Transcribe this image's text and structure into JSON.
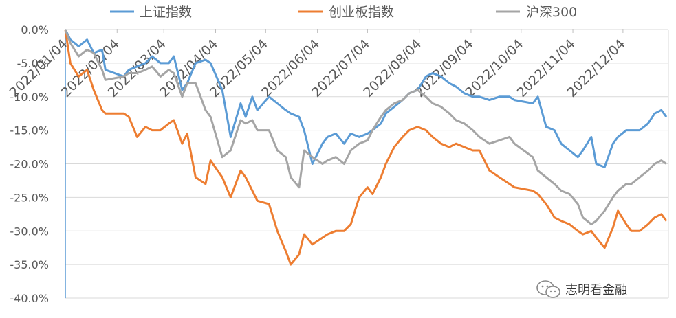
{
  "chart_data": {
    "type": "line",
    "title": "",
    "xlabel": "",
    "ylabel": "",
    "ylim": [
      -40,
      0
    ],
    "ytick_labels": [
      "0.0%",
      "-5.0%",
      "-10.0%",
      "-15.0%",
      "-20.0%",
      "-25.0%",
      "-30.0%",
      "-35.0%",
      "-40.0%"
    ],
    "xtick_labels": [
      "2022/01/04",
      "2022/02/04",
      "2022/03/04",
      "2022/04/04",
      "2022/05/04",
      "2022/06/04",
      "2022/07/04",
      "2022/08/04",
      "2022/09/04",
      "2022/10/04",
      "2022/11/04",
      "2022/12/04"
    ],
    "grid": "horizontal",
    "legend_position": "top",
    "x": [
      "2022-01-04",
      "2022-01-07",
      "2022-01-12",
      "2022-01-17",
      "2022-01-21",
      "2022-01-26",
      "2022-01-28",
      "2022-02-08",
      "2022-02-11",
      "2022-02-16",
      "2022-02-21",
      "2022-02-25",
      "2022-03-02",
      "2022-03-07",
      "2022-03-10",
      "2022-03-15",
      "2022-03-18",
      "2022-03-23",
      "2022-03-29",
      "2022-04-01",
      "2022-04-08",
      "2022-04-13",
      "2022-04-19",
      "2022-04-22",
      "2022-04-26",
      "2022-04-29",
      "2022-05-06",
      "2022-05-11",
      "2022-05-16",
      "2022-05-19",
      "2022-05-24",
      "2022-05-27",
      "2022-06-01",
      "2022-06-07",
      "2022-06-10",
      "2022-06-15",
      "2022-06-20",
      "2022-06-24",
      "2022-06-29",
      "2022-07-04",
      "2022-07-07",
      "2022-07-12",
      "2022-07-15",
      "2022-07-20",
      "2022-07-25",
      "2022-07-29",
      "2022-08-03",
      "2022-08-08",
      "2022-08-12",
      "2022-08-17",
      "2022-08-22",
      "2022-08-26",
      "2022-08-31",
      "2022-09-05",
      "2022-09-09",
      "2022-09-15",
      "2022-09-21",
      "2022-09-27",
      "2022-09-30",
      "2022-10-11",
      "2022-10-14",
      "2022-10-19",
      "2022-10-24",
      "2022-10-28",
      "2022-11-02",
      "2022-11-07",
      "2022-11-10",
      "2022-11-15",
      "2022-11-18",
      "2022-11-23",
      "2022-11-28",
      "2022-12-01",
      "2022-12-06",
      "2022-12-09",
      "2022-12-14",
      "2022-12-19",
      "2022-12-23",
      "2022-12-27",
      "2022-12-30"
    ],
    "series": [
      {
        "name": "上证指数",
        "color": "#5b9bd5",
        "values": [
          0,
          -1.5,
          -2.5,
          -1.5,
          -3.5,
          -3,
          -6,
          -7,
          -6,
          -5.5,
          -5,
          -4,
          -5,
          -5,
          -4,
          -9,
          -8,
          -5,
          -4.5,
          -5,
          -9,
          -16,
          -11,
          -13,
          -10,
          -12,
          -10,
          -11,
          -12,
          -12.5,
          -13,
          -15,
          -20,
          -17,
          -16,
          -15.5,
          -17,
          -15.5,
          -16,
          -15.5,
          -15,
          -14,
          -12.5,
          -11.5,
          -10.5,
          -9.5,
          -9,
          -7,
          -6.5,
          -7,
          -8,
          -8.5,
          -9.5,
          -10,
          -10,
          -10.5,
          -10,
          -10,
          -10.5,
          -11,
          -10,
          -14.5,
          -15,
          -17,
          -18,
          -19,
          -18,
          -16,
          -20,
          -20.5,
          -17,
          -16,
          -15,
          -15,
          -15,
          -14,
          -12.5,
          -12,
          -13
        ]
      },
      {
        "name": "创业板指数",
        "color": "#ed7d31",
        "values": [
          0,
          -5,
          -7,
          -6,
          -9,
          -12,
          -12.5,
          -12.5,
          -13,
          -16,
          -14.5,
          -15,
          -15,
          -14,
          -13.5,
          -17,
          -15.5,
          -22,
          -23,
          -19.5,
          -22,
          -25,
          -21,
          -22,
          -24,
          -25.5,
          -26,
          -30,
          -33,
          -35,
          -33.5,
          -30.5,
          -32,
          -31,
          -30.5,
          -30,
          -30,
          -29,
          -25,
          -23.5,
          -24.5,
          -22,
          -20,
          -17.5,
          -16,
          -15,
          -14.5,
          -15,
          -16,
          -17,
          -17.5,
          -17,
          -17.5,
          -18,
          -18,
          -21,
          -22,
          -23,
          -23.5,
          -24,
          -24.5,
          -26,
          -28,
          -28.5,
          -29,
          -30,
          -30.5,
          -30,
          -31,
          -32.5,
          -29.5,
          -27,
          -29,
          -30,
          -30,
          -29,
          -28,
          -27.5,
          -28.5
        ]
      },
      {
        "name": "沪深300",
        "color": "#a5a5a5",
        "values": [
          0,
          -2,
          -4,
          -3,
          -3.5,
          -6,
          -7.5,
          -7,
          -6.5,
          -6.5,
          -6,
          -5.5,
          -7,
          -6,
          -6.5,
          -10,
          -8,
          -8,
          -12,
          -13,
          -19,
          -18,
          -13.5,
          -14,
          -13.5,
          -15,
          -15,
          -18,
          -19,
          -22,
          -23.5,
          -18,
          -19,
          -20,
          -19.5,
          -19,
          -20,
          -18,
          -17,
          -16.5,
          -15,
          -13,
          -12,
          -11,
          -10.5,
          -9.5,
          -9,
          -10,
          -11,
          -11.5,
          -12.5,
          -13.5,
          -14,
          -15,
          -16,
          -17,
          -16.5,
          -16,
          -17,
          -19,
          -21,
          -22,
          -23,
          -24,
          -24.5,
          -26,
          -28,
          -29,
          -28.5,
          -27,
          -25,
          -24,
          -23,
          -23,
          -22,
          -21,
          -20,
          -19.5,
          -20
        ]
      }
    ]
  },
  "watermark": {
    "icon": "wechat-icon",
    "text": "志明看金融"
  }
}
